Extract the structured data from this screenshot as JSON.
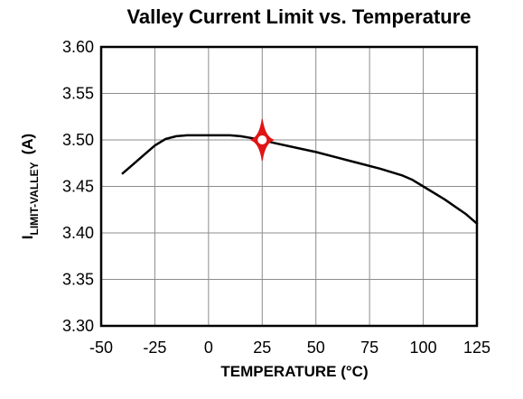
{
  "chart_data": {
    "type": "line",
    "title": "Valley Current Limit vs. Temperature",
    "xlabel": "TEMPERATURE (°C)",
    "ylabel": {
      "main": "I",
      "subscript": "LIMIT-VALLEY",
      "unit": "(A)"
    },
    "xlim": [
      -50,
      125
    ],
    "ylim": [
      3.3,
      3.6
    ],
    "x_ticks": [
      -50,
      -25,
      0,
      25,
      50,
      75,
      100,
      125
    ],
    "y_ticks": [
      3.3,
      3.35,
      3.4,
      3.45,
      3.5,
      3.55,
      3.6
    ],
    "x_tick_labels": [
      "-50",
      "-25",
      "0",
      "25",
      "50",
      "75",
      "100",
      "125"
    ],
    "y_tick_labels": [
      "3.30",
      "3.35",
      "3.40",
      "3.45",
      "3.50",
      "3.55",
      "3.60"
    ],
    "grid": true,
    "series": [
      {
        "color": "#000000",
        "x": [
          -40,
          -35,
          -30,
          -25,
          -20,
          -15,
          -10,
          -5,
          0,
          5,
          10,
          15,
          20,
          25,
          30,
          40,
          50,
          60,
          70,
          80,
          90,
          95,
          100,
          110,
          120,
          125
        ],
        "y": [
          3.464,
          3.474,
          3.484,
          3.494,
          3.501,
          3.504,
          3.505,
          3.505,
          3.505,
          3.505,
          3.505,
          3.504,
          3.502,
          3.5,
          3.497,
          3.492,
          3.487,
          3.481,
          3.475,
          3.469,
          3.462,
          3.457,
          3.45,
          3.436,
          3.42,
          3.41
        ]
      }
    ],
    "annotation": {
      "type": "marker",
      "x": 25,
      "y": 3.5,
      "color": "#e01515"
    }
  }
}
